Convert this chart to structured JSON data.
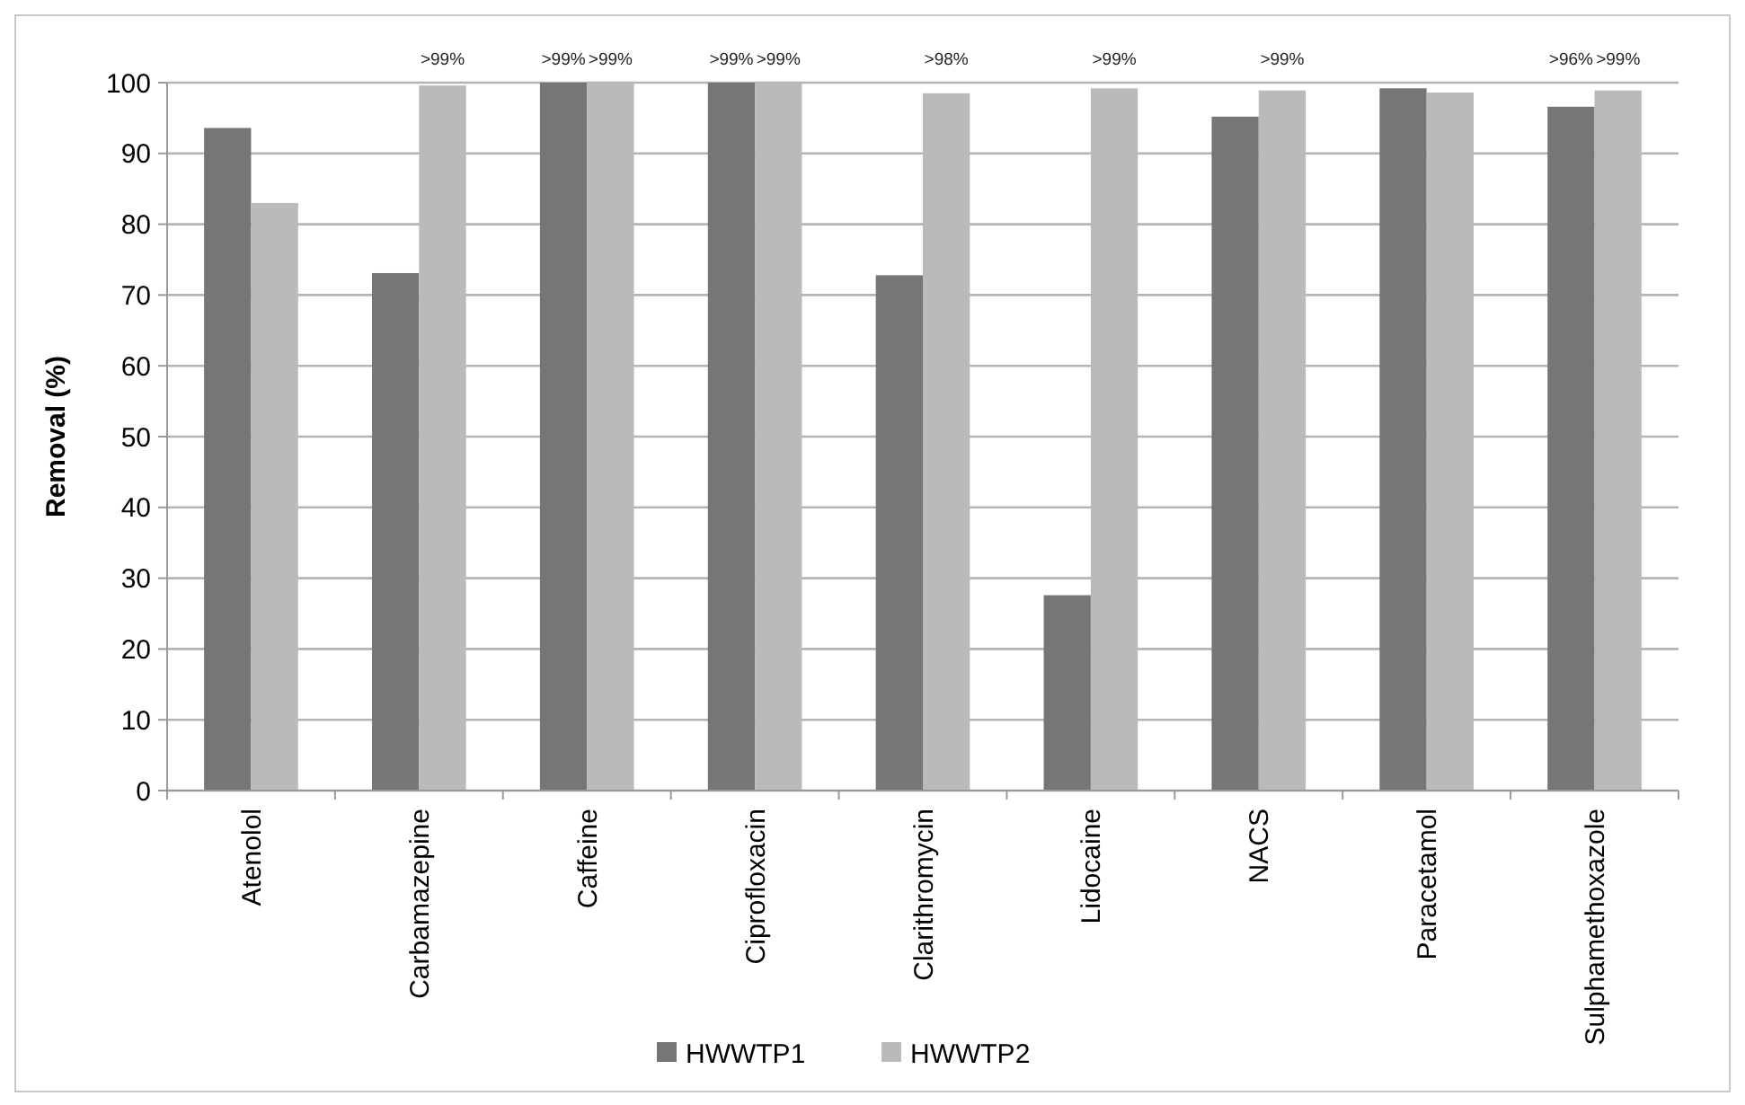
{
  "chart_data": {
    "type": "bar",
    "ylabel": "Removal (%)",
    "categories": [
      "Atenolol",
      "Carbamazepine",
      "Caffeine",
      "Ciprofloxacin",
      "Clarithromycin",
      "Lidocaine",
      "NACS",
      "Paracetamol",
      "Sulphamethoxazole"
    ],
    "series": [
      {
        "name": "HWWTP1",
        "color": "#767676",
        "values": [
          93.6,
          73.1,
          100,
          100,
          72.8,
          27.6,
          95.2,
          99.2,
          96.6
        ],
        "value_labels": [
          null,
          null,
          ">99%",
          ">99%",
          null,
          null,
          null,
          null,
          ">96%"
        ]
      },
      {
        "name": "HWWTP2",
        "color": "#bababa",
        "values": [
          83.0,
          99.6,
          100,
          100,
          98.5,
          99.2,
          98.9,
          98.6,
          98.9
        ],
        "value_labels": [
          null,
          ">99%",
          ">99%",
          ">99%",
          ">98%",
          ">99%",
          ">99%",
          null,
          ">99%"
        ]
      }
    ],
    "ylim": [
      0,
      100
    ],
    "yticks": [
      0,
      10,
      20,
      30,
      40,
      50,
      60,
      70,
      80,
      90,
      100
    ],
    "grid": "y",
    "legend": "bottom"
  }
}
